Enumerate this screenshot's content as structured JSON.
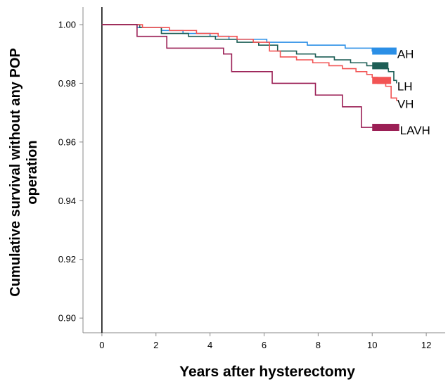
{
  "chart_data": {
    "type": "line",
    "title": "",
    "xlabel": "Years after hysterectomy",
    "ylabel_lines": [
      "Cumulative survival without any POP",
      "operation"
    ],
    "xlim": [
      -0.7,
      12.7
    ],
    "ylim": [
      0.895,
      1.006
    ],
    "x_ticks": [
      0,
      2,
      4,
      6,
      8,
      10,
      12
    ],
    "y_ticks": [
      0.9,
      0.92,
      0.94,
      0.96,
      0.98,
      1.0
    ],
    "y_tick_labels": [
      "0.90",
      "0.92",
      "0.94",
      "0.96",
      "0.98",
      "1.00"
    ],
    "grid": false,
    "series": [
      {
        "name": "AH",
        "color": "#2b8fe6",
        "x": [
          0,
          1.3,
          2.2,
          3.0,
          4.0,
          4.7,
          5.4,
          6.1,
          6.8,
          7.6,
          8.4,
          9.0,
          9.6,
          10.0,
          10.9
        ],
        "y": [
          1.0,
          0.999,
          0.998,
          0.997,
          0.996,
          0.995,
          0.995,
          0.994,
          0.994,
          0.993,
          0.993,
          0.992,
          0.992,
          0.991,
          0.991
        ],
        "censor_band": [
          10.0,
          10.9,
          0.991
        ]
      },
      {
        "name": "LH",
        "color": "#1d5e56",
        "x": [
          0,
          1.4,
          2.2,
          3.2,
          4.2,
          5.0,
          5.8,
          6.5,
          7.2,
          7.9,
          8.6,
          9.2,
          9.8,
          10.0,
          10.4,
          10.6,
          10.8,
          10.9
        ],
        "y": [
          1.0,
          0.999,
          0.997,
          0.996,
          0.995,
          0.994,
          0.993,
          0.991,
          0.99,
          0.989,
          0.988,
          0.987,
          0.986,
          0.986,
          0.985,
          0.984,
          0.981,
          0.98
        ],
        "censor_band": [
          10.0,
          10.6,
          0.986
        ]
      },
      {
        "name": "VH",
        "color": "#f25454",
        "x": [
          0,
          1.5,
          2.5,
          3.5,
          4.3,
          5.0,
          5.6,
          6.2,
          6.6,
          7.2,
          7.8,
          8.4,
          8.9,
          9.4,
          9.8,
          10.0,
          10.2,
          10.5,
          10.7,
          10.9
        ],
        "y": [
          1.0,
          0.999,
          0.998,
          0.997,
          0.996,
          0.995,
          0.994,
          0.991,
          0.989,
          0.988,
          0.987,
          0.986,
          0.985,
          0.984,
          0.983,
          0.982,
          0.98,
          0.979,
          0.975,
          0.974
        ],
        "censor_band": [
          10.0,
          10.7,
          0.981
        ]
      },
      {
        "name": "LAVH",
        "color": "#9b1f55",
        "x": [
          0,
          1.3,
          2.4,
          4.5,
          4.8,
          6.3,
          7.9,
          8.9,
          9.6,
          10.0,
          11.0
        ],
        "y": [
          1.0,
          0.996,
          0.992,
          0.99,
          0.984,
          0.98,
          0.976,
          0.972,
          0.965,
          0.965,
          0.965
        ],
        "censor_band": [
          10.0,
          11.0,
          0.965
        ]
      }
    ]
  }
}
